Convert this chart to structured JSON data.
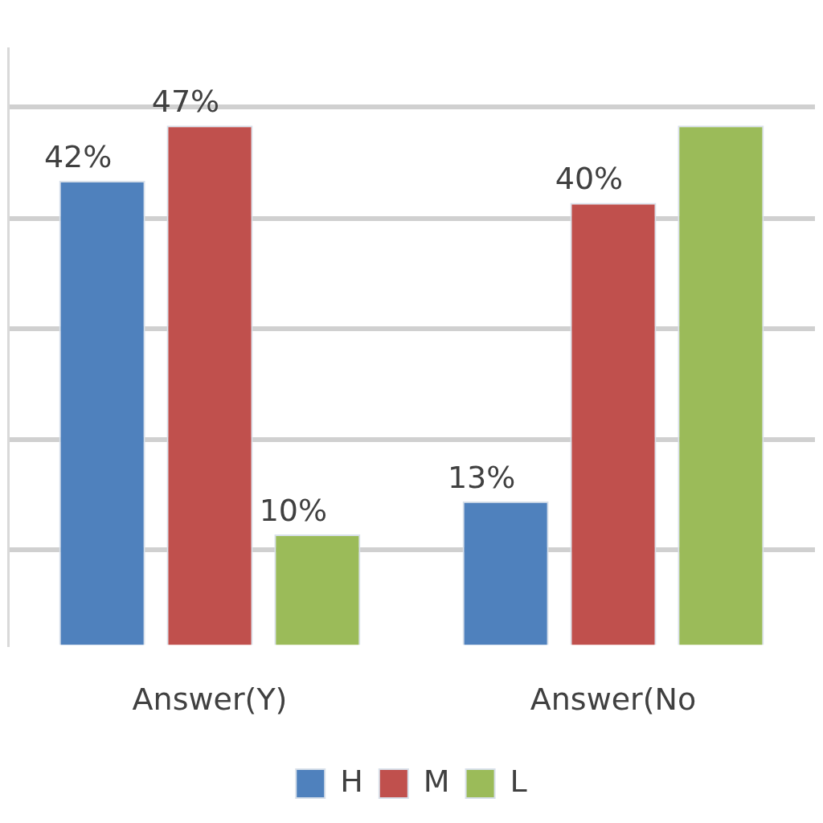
{
  "chart_data": {
    "type": "bar",
    "categories": [
      "Answer(Y)",
      "Answer(No"
    ],
    "series": [
      {
        "name": "H",
        "color": "#4f81bd",
        "values": [
          42,
          13
        ],
        "value_labels": [
          "42%",
          "13%"
        ]
      },
      {
        "name": "M",
        "color": "#c0504d",
        "values": [
          47,
          40
        ],
        "value_labels": [
          "47%",
          "40%"
        ]
      },
      {
        "name": "L",
        "color": "#9bbb59",
        "values": [
          10,
          47
        ],
        "value_labels": [
          "10%",
          null
        ]
      }
    ],
    "ylim": [
      0,
      54
    ],
    "yticks": [
      {
        "value": 8.6,
        "label": null
      },
      {
        "value": 18.6,
        "label": null
      },
      {
        "value": 28.6,
        "label": null
      },
      {
        "value": 38.6,
        "label": null
      },
      {
        "value": 48.7,
        "label": null
      }
    ],
    "grid": "y",
    "legend": "bottom",
    "tick_labels": "x"
  }
}
